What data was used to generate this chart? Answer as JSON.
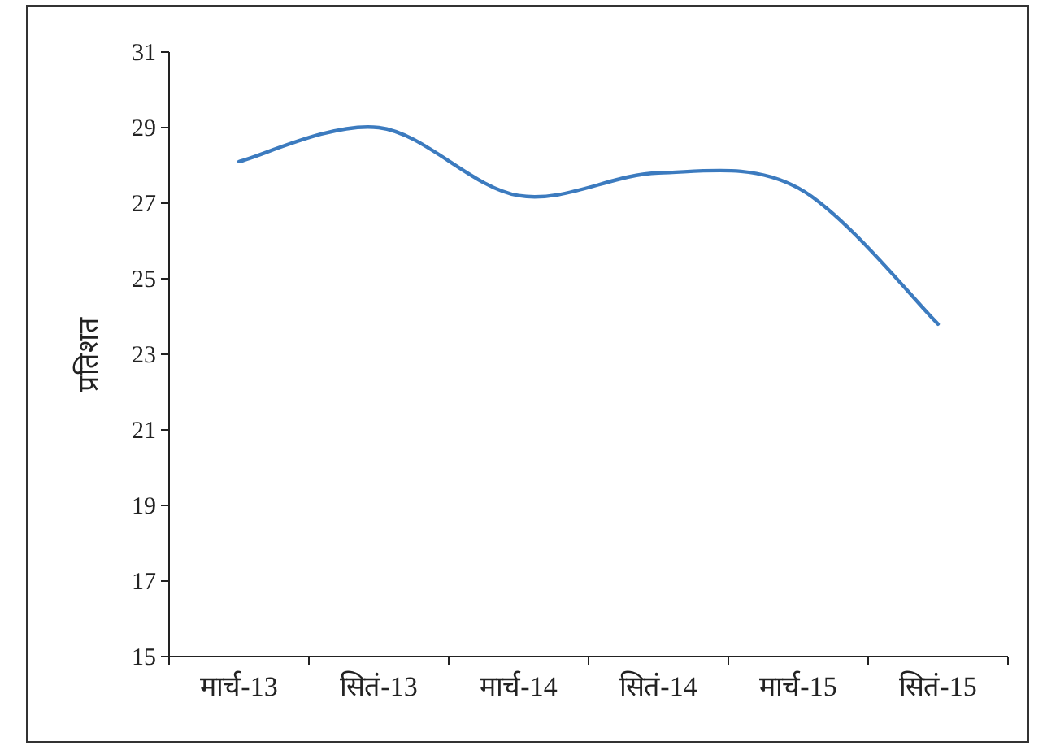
{
  "chart_data": {
    "type": "line",
    "ylabel": "प्रतिशत",
    "categories": [
      "मार्च-13",
      "सितं-13",
      "मार्च-14",
      "सितं-14",
      "मार्च-15",
      "सितं-15"
    ],
    "series": [
      {
        "color": "#3c7bbf",
        "values": [
          28.1,
          29.0,
          27.2,
          27.8,
          27.4,
          23.8
        ]
      }
    ],
    "ylim": [
      15,
      31
    ],
    "yticks": [
      15,
      17,
      19,
      21,
      23,
      25,
      27,
      29,
      31
    ],
    "grid": false
  }
}
